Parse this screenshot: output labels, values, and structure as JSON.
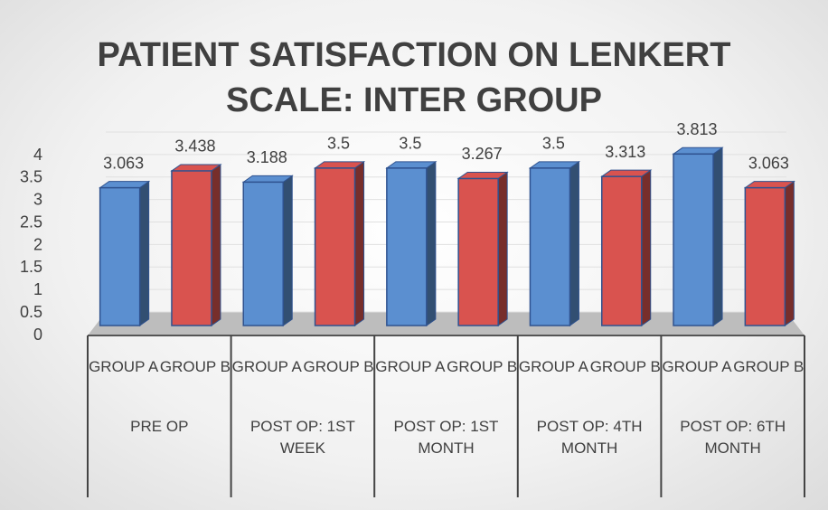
{
  "chart_data": {
    "type": "bar",
    "title": "PATIENT SATISFACTION ON LENKERT SCALE: INTER GROUP",
    "categories": [
      "GROUP A",
      "GROUP B",
      "GROUP A",
      "GROUP B",
      "GROUP A",
      "GROUP B",
      "GROUP A",
      "GROUP B",
      "GROUP A",
      "GROUP B"
    ],
    "category_groups": [
      "PRE OP",
      "POST OP: 1ST WEEK",
      "POST OP: 1ST MONTH",
      "POST OP: 4TH MONTH",
      "POST OP: 6TH MONTH"
    ],
    "values": [
      3.063,
      3.438,
      3.188,
      3.5,
      3.5,
      3.267,
      3.5,
      3.313,
      3.813,
      3.063
    ],
    "colors": [
      "#5b8fd0",
      "#d9534f",
      "#5b8fd0",
      "#d9534f",
      "#5b8fd0",
      "#d9534f",
      "#5b8fd0",
      "#d9534f",
      "#5b8fd0",
      "#d9534f"
    ],
    "ylim": [
      0,
      4
    ],
    "yticks": [
      0,
      0.5,
      1,
      1.5,
      2,
      2.5,
      3,
      3.5,
      4
    ],
    "grid": true
  }
}
